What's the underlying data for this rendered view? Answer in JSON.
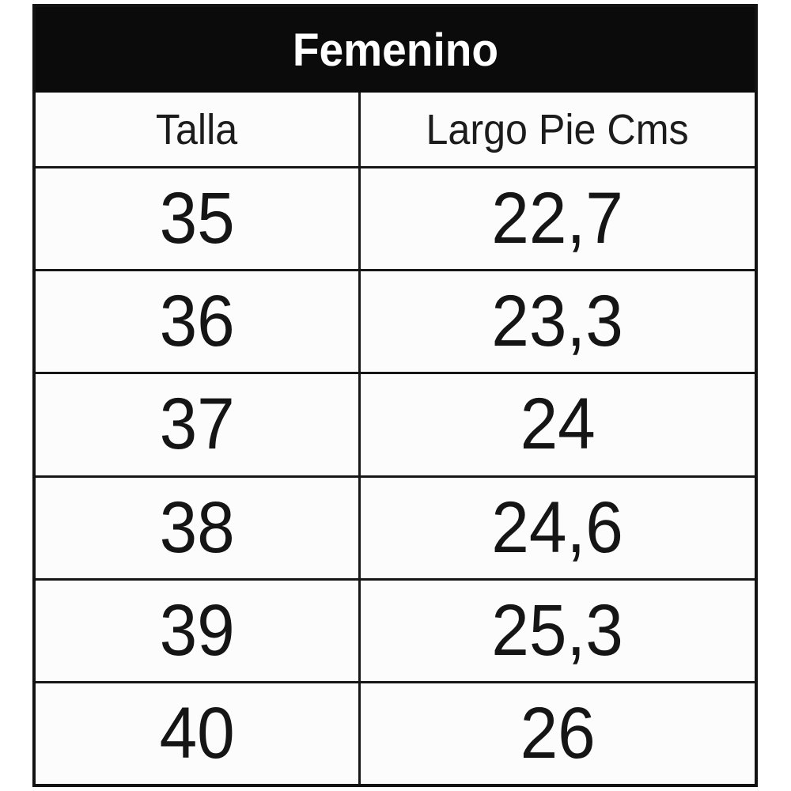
{
  "table": {
    "title": "Femenino",
    "columns": {
      "talla": "Talla",
      "largo": "Largo Pie Cms"
    },
    "rows": [
      {
        "talla": "35",
        "largo": "22,7"
      },
      {
        "talla": "36",
        "largo": "23,3"
      },
      {
        "talla": "37",
        "largo": "24"
      },
      {
        "talla": "38",
        "largo": "24,6"
      },
      {
        "talla": "39",
        "largo": "25,3"
      },
      {
        "talla": "40",
        "largo": "26"
      }
    ]
  },
  "colors": {
    "title_bg": "#0b0b0b",
    "title_text": "#ffffff",
    "border": "#171717",
    "cell_bg": "#fcfcfc",
    "text": "#151515"
  }
}
